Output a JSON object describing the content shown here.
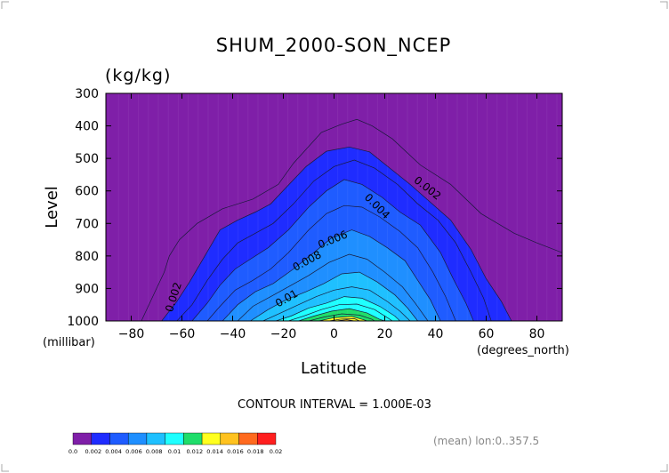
{
  "chart_data": {
    "type": "contour",
    "title": "SHUM_2000-SON_NCEP",
    "units": "(kg/kg)",
    "xlabel": "Latitude",
    "ylabel": "Level",
    "x_unit_label": "(degrees_north)",
    "y_unit_label": "(millibar)",
    "xlim": [
      -90,
      90
    ],
    "ylim": [
      1000,
      300
    ],
    "x_ticks": [
      -80,
      -60,
      -40,
      -20,
      0,
      20,
      40,
      60,
      80
    ],
    "x_tick_labels": [
      "−80",
      "−60",
      "−40",
      "−20",
      "0",
      "20",
      "40",
      "60",
      "80"
    ],
    "y_ticks": [
      300,
      400,
      500,
      600,
      700,
      800,
      900,
      1000
    ],
    "y_tick_labels": [
      "300",
      "400",
      "500",
      "600",
      "700",
      "800",
      "900",
      "1000"
    ],
    "contour_interval_text": "CONTOUR INTERVAL = 1.000E-03",
    "source_note": "(mean) lon:0..357.5",
    "levels": [
      0.0,
      0.002,
      0.004,
      0.006,
      0.008,
      0.01,
      0.012,
      0.014,
      0.016,
      0.018,
      0.02
    ],
    "colorbar_labels": [
      "0.0",
      "0.002",
      "0.004",
      "0.006",
      "0.008",
      "0.01",
      "0.012",
      "0.014",
      "0.016",
      "0.018",
      "0.02"
    ],
    "colors": [
      "#7f1fa8",
      "#1f2cff",
      "#1f5cff",
      "#1f8fff",
      "#1fc0ff",
      "#1fffff",
      "#1fdd6a",
      "#ffff1f",
      "#ffc21f",
      "#ff6a1f",
      "#ff1f1f"
    ],
    "contours": [
      {
        "value": 0.001,
        "points": [
          [
            -76,
            1000
          ],
          [
            -70,
            900
          ],
          [
            -67,
            850
          ],
          [
            -65,
            800
          ],
          [
            -61,
            750
          ],
          [
            -54,
            700
          ],
          [
            -44,
            655
          ],
          [
            -32,
            625
          ],
          [
            -22,
            580
          ],
          [
            -16,
            515
          ],
          [
            -5,
            420
          ],
          [
            3,
            395
          ],
          [
            9,
            380
          ],
          [
            15,
            400
          ],
          [
            23,
            440
          ],
          [
            34,
            520
          ],
          [
            46,
            580
          ],
          [
            58,
            670
          ],
          [
            71,
            730
          ],
          [
            80,
            760
          ],
          [
            90,
            790
          ]
        ]
      },
      {
        "value": 0.002,
        "points": [
          [
            -68,
            1000
          ],
          [
            -62,
            940
          ],
          [
            -57,
            880
          ],
          [
            -51,
            800
          ],
          [
            -45,
            720
          ],
          [
            -38,
            690
          ],
          [
            -31,
            665
          ],
          [
            -25,
            640
          ],
          [
            -19,
            590
          ],
          [
            -11,
            525
          ],
          [
            -3,
            478
          ],
          [
            6,
            465
          ],
          [
            14,
            480
          ],
          [
            22,
            530
          ],
          [
            30,
            580
          ],
          [
            38,
            635
          ],
          [
            46,
            690
          ],
          [
            54,
            780
          ],
          [
            60,
            870
          ],
          [
            66,
            940
          ],
          [
            70,
            1000
          ]
        ]
      },
      {
        "value": 0.003,
        "points": [
          [
            -62,
            1000
          ],
          [
            -56,
            950
          ],
          [
            -50,
            875
          ],
          [
            -44,
            810
          ],
          [
            -38,
            760
          ],
          [
            -31,
            730
          ],
          [
            -24,
            700
          ],
          [
            -16,
            640
          ],
          [
            -8,
            570
          ],
          [
            0,
            525
          ],
          [
            8,
            505
          ],
          [
            16,
            530
          ],
          [
            25,
            580
          ],
          [
            33,
            640
          ],
          [
            41,
            690
          ],
          [
            48,
            760
          ],
          [
            54,
            850
          ],
          [
            59,
            930
          ],
          [
            62,
            1000
          ]
        ]
      },
      {
        "value": 0.004,
        "points": [
          [
            -56,
            1000
          ],
          [
            -50,
            945
          ],
          [
            -45,
            890
          ],
          [
            -39,
            840
          ],
          [
            -33,
            810
          ],
          [
            -26,
            775
          ],
          [
            -18,
            720
          ],
          [
            -10,
            650
          ],
          [
            -3,
            600
          ],
          [
            4,
            565
          ],
          [
            11,
            580
          ],
          [
            19,
            620
          ],
          [
            26,
            665
          ],
          [
            34,
            705
          ],
          [
            42,
            790
          ],
          [
            47,
            870
          ],
          [
            52,
            945
          ],
          [
            55,
            1000
          ]
        ]
      },
      {
        "value": 0.005,
        "points": [
          [
            -50,
            1000
          ],
          [
            -45,
            955
          ],
          [
            -39,
            905
          ],
          [
            -32,
            875
          ],
          [
            -25,
            840
          ],
          [
            -18,
            790
          ],
          [
            -10,
            720
          ],
          [
            -3,
            670
          ],
          [
            4,
            645
          ],
          [
            11,
            650
          ],
          [
            18,
            680
          ],
          [
            26,
            725
          ],
          [
            33,
            775
          ],
          [
            39,
            850
          ],
          [
            44,
            925
          ],
          [
            48,
            1000
          ]
        ]
      },
      {
        "value": 0.006,
        "points": [
          [
            -44,
            1000
          ],
          [
            -38,
            950
          ],
          [
            -31,
            910
          ],
          [
            -24,
            885
          ],
          [
            -16,
            840
          ],
          [
            -8,
            790
          ],
          [
            -1,
            745
          ],
          [
            7,
            720
          ],
          [
            14,
            740
          ],
          [
            21,
            775
          ],
          [
            28,
            815
          ],
          [
            33,
            875
          ],
          [
            38,
            935
          ],
          [
            42,
            1000
          ]
        ]
      },
      {
        "value": 0.007,
        "points": [
          [
            -38,
            1000
          ],
          [
            -32,
            955
          ],
          [
            -25,
            925
          ],
          [
            -18,
            895
          ],
          [
            -10,
            860
          ],
          [
            -2,
            820
          ],
          [
            6,
            795
          ],
          [
            13,
            810
          ],
          [
            20,
            850
          ],
          [
            27,
            895
          ],
          [
            32,
            945
          ],
          [
            37,
            1000
          ]
        ]
      },
      {
        "value": 0.008,
        "points": [
          [
            -33,
            1000
          ],
          [
            -26,
            965
          ],
          [
            -19,
            935
          ],
          [
            -11,
            910
          ],
          [
            -4,
            885
          ],
          [
            3,
            855
          ],
          [
            10,
            850
          ],
          [
            17,
            880
          ],
          [
            24,
            920
          ],
          [
            29,
            960
          ],
          [
            33,
            1000
          ]
        ]
      },
      {
        "value": 0.009,
        "points": [
          [
            -28,
            1000
          ],
          [
            -21,
            975
          ],
          [
            -14,
            950
          ],
          [
            -7,
            925
          ],
          [
            0,
            905
          ],
          [
            7,
            895
          ],
          [
            14,
            905
          ],
          [
            21,
            940
          ],
          [
            26,
            970
          ],
          [
            30,
            1000
          ]
        ]
      },
      {
        "value": 0.01,
        "points": [
          [
            -23,
            1000
          ],
          [
            -17,
            985
          ],
          [
            -10,
            960
          ],
          [
            -3,
            945
          ],
          [
            4,
            925
          ],
          [
            11,
            930
          ],
          [
            18,
            955
          ],
          [
            24,
            985
          ],
          [
            26,
            1000
          ]
        ]
      },
      {
        "value": 0.011,
        "points": [
          [
            -18,
            1000
          ],
          [
            -12,
            985
          ],
          [
            -5,
            965
          ],
          [
            2,
            950
          ],
          [
            9,
            948
          ],
          [
            16,
            965
          ],
          [
            21,
            990
          ],
          [
            23,
            1000
          ]
        ]
      },
      {
        "value": 0.012,
        "points": [
          [
            -14,
            1000
          ],
          [
            -8,
            985
          ],
          [
            -1,
            970
          ],
          [
            6,
            962
          ],
          [
            13,
            975
          ],
          [
            18,
            995
          ],
          [
            20,
            1000
          ]
        ]
      },
      {
        "value": 0.013,
        "points": [
          [
            -10,
            1000
          ],
          [
            -4,
            988
          ],
          [
            3,
            978
          ],
          [
            10,
            982
          ],
          [
            15,
            995
          ],
          [
            16,
            1000
          ]
        ]
      },
      {
        "value": 0.014,
        "points": [
          [
            -6,
            1000
          ],
          [
            0,
            990
          ],
          [
            7,
            986
          ],
          [
            12,
            997
          ],
          [
            13,
            1000
          ]
        ]
      },
      {
        "value": 0.015,
        "points": [
          [
            -2,
            1000
          ],
          [
            3,
            994
          ],
          [
            8,
            993
          ],
          [
            10,
            1000
          ]
        ]
      },
      {
        "value": 0.016,
        "points": [
          [
            1,
            1000
          ],
          [
            5,
            996
          ],
          [
            8,
            1000
          ]
        ]
      }
    ],
    "contour_labels": [
      {
        "text": "0.002",
        "lat": -62,
        "lev": 930,
        "angle": -72
      },
      {
        "text": "0.002",
        "lat": 36,
        "lev": 600,
        "angle": 38
      },
      {
        "text": "0.004",
        "lat": 16,
        "lev": 655,
        "angle": 45
      },
      {
        "text": "0.006",
        "lat": 0,
        "lev": 760,
        "angle": -22
      },
      {
        "text": "0.008",
        "lat": -10,
        "lev": 825,
        "angle": -28
      },
      {
        "text": "0.01",
        "lat": -18,
        "lev": 940,
        "angle": -30
      }
    ]
  }
}
